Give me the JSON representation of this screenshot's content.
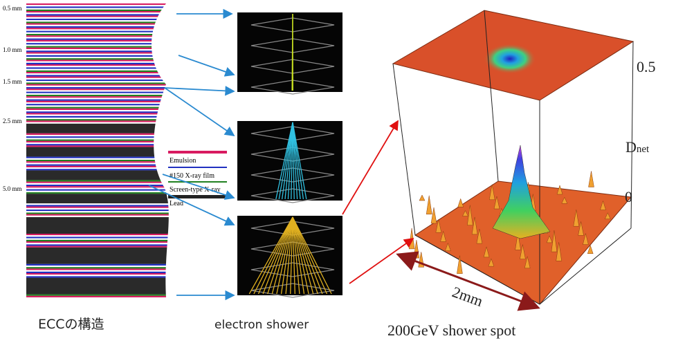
{
  "ecc": {
    "scale_labels": [
      "0.5 mm",
      "1.0 mm",
      "1.5 mm",
      "2.5 mm",
      "5.0 mm"
    ],
    "legend": [
      "Emulsion",
      "#150 X-ray film",
      "Screen-type X-ray",
      "Lead"
    ],
    "caption": "ECCの構造"
  },
  "shower": {
    "caption": "electron shower"
  },
  "spot": {
    "caption": "200GeV shower spot",
    "width_label": "2mm",
    "top_label": "0.5",
    "axis_label": {
      "symbol": "D",
      "subscript": "net"
    },
    "bottom_label": "0"
  }
}
